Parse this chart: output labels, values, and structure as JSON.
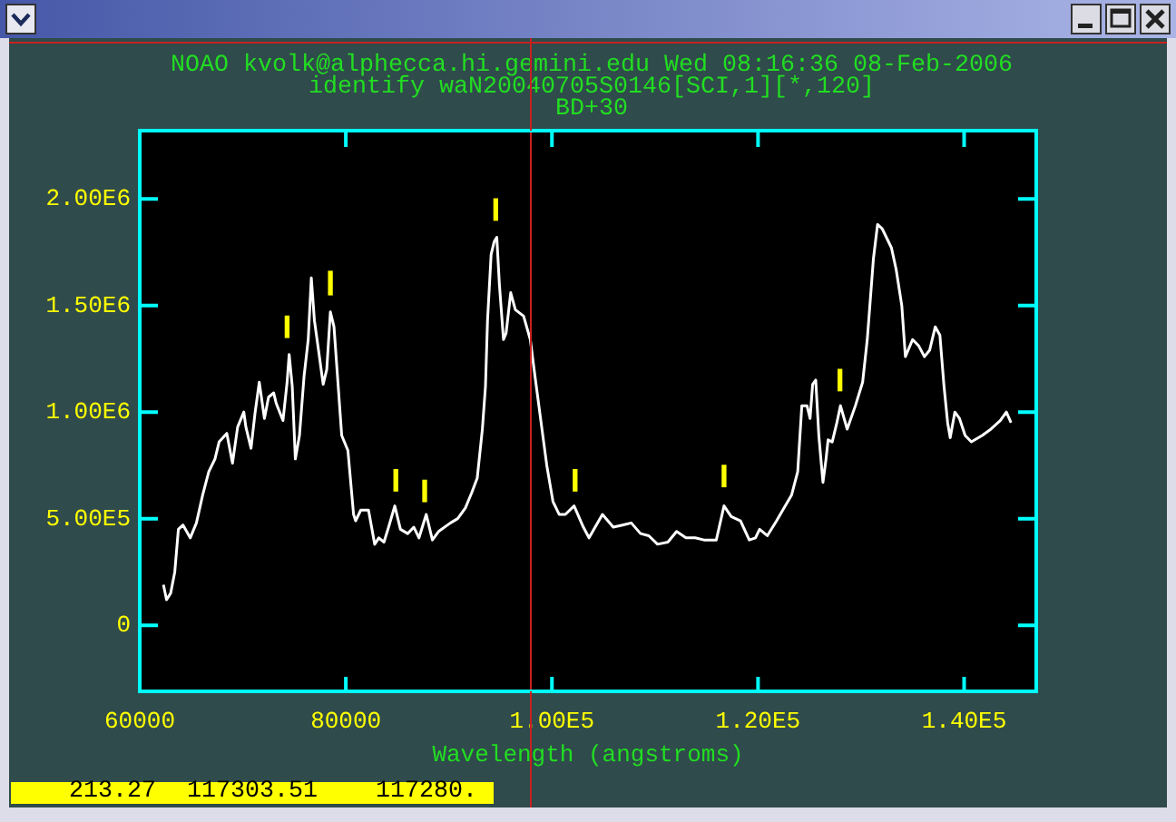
{
  "chart_data": {
    "type": "line",
    "marker": "none",
    "title": "NOAO kvolk@alphecca.hi.gemini.edu Wed 08:16:36 08-Feb-2006",
    "subtitle": "identify waN20040705S0146[SCI,1][*,120]",
    "xlabel": "Wavelength (angstroms)",
    "annotations": [
      "BD+30",
      "213.27",
      "117303.51",
      "117280."
    ],
    "xlim": [
      60000,
      147000
    ],
    "ylim": [
      -310000,
      2320000
    ],
    "xticks": [
      60000,
      80000,
      {
        "value": 100000,
        "label": "1.00E5"
      },
      {
        "value": 120000,
        "label": "1.20E5"
      },
      {
        "value": 140000,
        "label": "1.40E5"
      }
    ],
    "yticks": [
      0,
      {
        "value": 500000,
        "label": "5.00E5"
      },
      {
        "value": 1000000,
        "label": "1.00E6"
      },
      {
        "value": 1500000,
        "label": "1.50E6"
      },
      {
        "value": 2000000,
        "label": "2.00E6"
      }
    ],
    "ref_lines": [
      {
        "axis": "x",
        "value": 97800,
        "color": "#c82020"
      }
    ],
    "series": [
      {
        "color": "#ffffff",
        "x": [
          62300,
          62600,
          63000,
          63400,
          63750,
          64200,
          64900,
          65500,
          66100,
          66700,
          67300,
          67700,
          68450,
          69000,
          69500,
          70100,
          70300,
          70800,
          71200,
          71600,
          72100,
          72500,
          73000,
          73250,
          73900,
          74300,
          74500,
          74800,
          75100,
          75500,
          75950,
          76350,
          76650,
          76950,
          77350,
          77800,
          78150,
          78500,
          78850,
          79600,
          80200,
          80750,
          80950,
          81450,
          82200,
          82800,
          83200,
          83700,
          84150,
          84750,
          85300,
          86000,
          86600,
          87100,
          87800,
          88400,
          89000,
          90150,
          90850,
          91600,
          92200,
          92750,
          93250,
          93550,
          93750,
          94100,
          94400,
          94650,
          94900,
          95300,
          95550,
          96000,
          96450,
          97250,
          97900,
          98350,
          98950,
          99500,
          100100,
          100700,
          101300,
          102150,
          103050,
          103600,
          104900,
          105950,
          106850,
          107700,
          108600,
          109400,
          110250,
          111250,
          112100,
          113000,
          113900,
          114750,
          115950,
          116700,
          117400,
          118300,
          119150,
          119750,
          120150,
          120900,
          121800,
          122400,
          123250,
          123850,
          124250,
          124750,
          125050,
          125300,
          125600,
          125900,
          126300,
          126600,
          126800,
          127200,
          127650,
          128000,
          128650,
          129450,
          130150,
          130600,
          131200,
          131600,
          132050,
          132950,
          133400,
          133950,
          134300,
          135000,
          135600,
          136150,
          136650,
          137200,
          137650,
          138050,
          138400,
          138650,
          139100,
          139550,
          140100,
          140700,
          141750,
          142600,
          143500,
          144100,
          144550
        ],
        "values": [
          190000,
          120000,
          150000,
          250000,
          450000,
          470000,
          410000,
          480000,
          610000,
          720000,
          780000,
          860000,
          900000,
          760000,
          930000,
          1000000,
          930000,
          830000,
          1000000,
          1140000,
          970000,
          1070000,
          1090000,
          1040000,
          960000,
          1140000,
          1270000,
          1120000,
          780000,
          890000,
          1170000,
          1340000,
          1630000,
          1430000,
          1290000,
          1130000,
          1200000,
          1470000,
          1400000,
          890000,
          820000,
          520000,
          490000,
          540000,
          540000,
          380000,
          410000,
          390000,
          460000,
          560000,
          450000,
          430000,
          460000,
          410000,
          520000,
          400000,
          440000,
          480000,
          500000,
          550000,
          620000,
          690000,
          920000,
          1120000,
          1430000,
          1740000,
          1800000,
          1820000,
          1600000,
          1340000,
          1370000,
          1560000,
          1480000,
          1450000,
          1340000,
          1170000,
          950000,
          750000,
          580000,
          520000,
          520000,
          560000,
          460000,
          410000,
          520000,
          460000,
          470000,
          480000,
          430000,
          420000,
          380000,
          390000,
          440000,
          410000,
          410000,
          400000,
          400000,
          560000,
          510000,
          490000,
          400000,
          410000,
          450000,
          420000,
          490000,
          540000,
          610000,
          720000,
          1030000,
          1030000,
          970000,
          1130000,
          1150000,
          890000,
          670000,
          780000,
          870000,
          860000,
          950000,
          1030000,
          920000,
          1030000,
          1140000,
          1340000,
          1720000,
          1880000,
          1860000,
          1770000,
          1670000,
          1500000,
          1260000,
          1340000,
          1310000,
          1260000,
          1290000,
          1400000,
          1360000,
          1120000,
          950000,
          880000,
          1000000,
          970000,
          890000,
          860000,
          890000,
          920000,
          960000,
          1000000,
          950000
        ]
      },
      {
        "type": "bar",
        "color": "#ffff00",
        "x": [
          74300,
          78500,
          84850,
          87650,
          94550,
          102250,
          116700,
          127950
        ],
        "base": [
          1350000,
          1550000,
          630000,
          580000,
          1900000,
          630000,
          650000,
          1100000
        ],
        "values": [
          100000,
          110000,
          100000,
          100000,
          100000,
          100000,
          100000,
          100000
        ]
      }
    ]
  }
}
